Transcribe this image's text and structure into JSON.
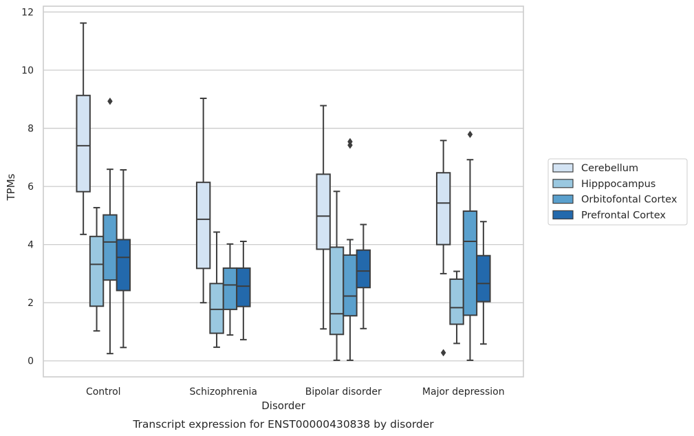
{
  "chart_data": {
    "type": "boxplot",
    "caption": "Transcript expression for ENST00000430838 by disorder",
    "xlabel": "Disorder",
    "ylabel": "TPMs",
    "ylim": [
      -0.55,
      12.2
    ],
    "yticks": [
      0,
      2,
      4,
      6,
      8,
      10,
      12
    ],
    "grid": "horizontal",
    "legend_position": "right",
    "categories": [
      "Control",
      "Schizophrenia",
      "Bipolar disorder",
      "Major depression"
    ],
    "series": [
      {
        "name": "Cerebellum",
        "color": "#d3e3f3",
        "boxes": [
          {
            "whislo": 4.35,
            "q1": 5.82,
            "med": 7.4,
            "q3": 9.13,
            "whishi": 11.62,
            "fliers": []
          },
          {
            "whislo": 2.0,
            "q1": 3.18,
            "med": 4.87,
            "q3": 6.14,
            "whishi": 9.03,
            "fliers": []
          },
          {
            "whislo": 1.1,
            "q1": 3.84,
            "med": 4.98,
            "q3": 6.42,
            "whishi": 8.78,
            "fliers": []
          },
          {
            "whislo": 3.0,
            "q1": 4.0,
            "med": 5.43,
            "q3": 6.47,
            "whishi": 7.58,
            "fliers": [
              0.28
            ]
          }
        ]
      },
      {
        "name": "Hipppocampus",
        "color": "#9ac8e0",
        "boxes": [
          {
            "whislo": 1.03,
            "q1": 1.88,
            "med": 3.32,
            "q3": 4.28,
            "whishi": 5.27,
            "fliers": []
          },
          {
            "whislo": 0.47,
            "q1": 0.95,
            "med": 1.77,
            "q3": 2.66,
            "whishi": 4.43,
            "fliers": []
          },
          {
            "whislo": 0.02,
            "q1": 0.91,
            "med": 1.62,
            "q3": 3.91,
            "whishi": 5.83,
            "fliers": []
          },
          {
            "whislo": 0.6,
            "q1": 1.26,
            "med": 1.83,
            "q3": 2.81,
            "whishi": 3.08,
            "fliers": []
          }
        ]
      },
      {
        "name": "Orbitofontal Cortex",
        "color": "#5aa0cd",
        "boxes": [
          {
            "whislo": 0.25,
            "q1": 2.78,
            "med": 4.09,
            "q3": 5.02,
            "whishi": 6.59,
            "fliers": [
              8.93
            ]
          },
          {
            "whislo": 0.89,
            "q1": 1.77,
            "med": 2.61,
            "q3": 3.19,
            "whishi": 4.02,
            "fliers": []
          },
          {
            "whislo": 0.02,
            "q1": 1.55,
            "med": 2.23,
            "q3": 3.64,
            "whishi": 4.17,
            "fliers": [
              7.42,
              7.54
            ]
          },
          {
            "whislo": 0.02,
            "q1": 1.57,
            "med": 4.11,
            "q3": 5.15,
            "whishi": 6.92,
            "fliers": [
              7.79
            ]
          }
        ]
      },
      {
        "name": "Prefrontal Cortex",
        "color": "#2369ac",
        "boxes": [
          {
            "whislo": 0.46,
            "q1": 2.42,
            "med": 3.56,
            "q3": 4.17,
            "whishi": 6.57,
            "fliers": []
          },
          {
            "whislo": 0.73,
            "q1": 1.87,
            "med": 2.57,
            "q3": 3.19,
            "whishi": 4.11,
            "fliers": []
          },
          {
            "whislo": 1.11,
            "q1": 2.52,
            "med": 3.09,
            "q3": 3.81,
            "whishi": 4.69,
            "fliers": []
          },
          {
            "whislo": 0.58,
            "q1": 2.04,
            "med": 2.66,
            "q3": 3.62,
            "whishi": 4.79,
            "fliers": []
          }
        ]
      }
    ]
  }
}
